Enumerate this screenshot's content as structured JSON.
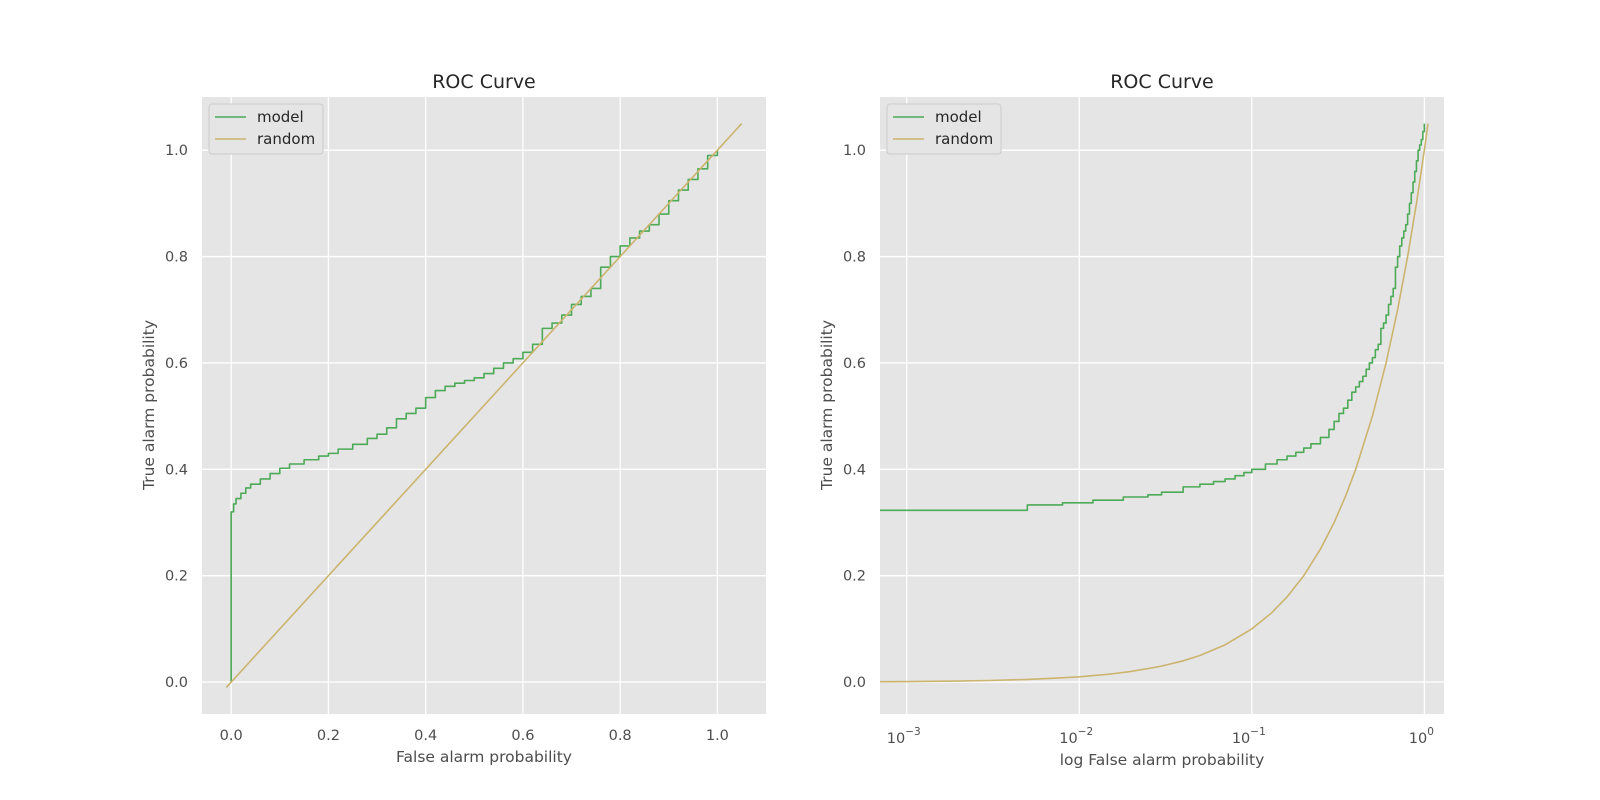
{
  "chart_data": [
    {
      "type": "line",
      "title": "ROC Curve",
      "xlabel": "False alarm probability",
      "ylabel": "True alarm probability",
      "xscale": "linear",
      "xlim": [
        -0.06,
        1.1
      ],
      "ylim": [
        -0.06,
        1.1
      ],
      "xticks": [
        0.0,
        0.2,
        0.4,
        0.6,
        0.8,
        1.0
      ],
      "xtick_labels": [
        "0.0",
        "0.2",
        "0.4",
        "0.6",
        "0.8",
        "1.0"
      ],
      "yticks": [
        0.0,
        0.2,
        0.4,
        0.6,
        0.8,
        1.0
      ],
      "ytick_labels": [
        "0.0",
        "0.2",
        "0.4",
        "0.6",
        "0.8",
        "1.0"
      ],
      "grid": true,
      "legend": "upper-left",
      "series": [
        {
          "name": "model",
          "color": "#4daa57",
          "step": true,
          "x": [
            0.0,
            0.0,
            0.005,
            0.01,
            0.02,
            0.03,
            0.04,
            0.06,
            0.08,
            0.1,
            0.12,
            0.15,
            0.18,
            0.2,
            0.22,
            0.25,
            0.28,
            0.3,
            0.32,
            0.34,
            0.36,
            0.38,
            0.4,
            0.42,
            0.44,
            0.46,
            0.48,
            0.5,
            0.52,
            0.54,
            0.56,
            0.58,
            0.6,
            0.62,
            0.64,
            0.66,
            0.68,
            0.7,
            0.72,
            0.74,
            0.76,
            0.78,
            0.8,
            0.82,
            0.84,
            0.86,
            0.88,
            0.9,
            0.92,
            0.94,
            0.96,
            0.98,
            1.0
          ],
          "y": [
            0.0,
            0.32,
            0.335,
            0.345,
            0.355,
            0.365,
            0.372,
            0.382,
            0.392,
            0.402,
            0.41,
            0.418,
            0.425,
            0.43,
            0.438,
            0.447,
            0.458,
            0.466,
            0.478,
            0.495,
            0.505,
            0.515,
            0.535,
            0.548,
            0.556,
            0.562,
            0.567,
            0.572,
            0.58,
            0.59,
            0.6,
            0.608,
            0.62,
            0.635,
            0.665,
            0.675,
            0.69,
            0.71,
            0.725,
            0.74,
            0.78,
            0.8,
            0.82,
            0.835,
            0.848,
            0.86,
            0.88,
            0.905,
            0.925,
            0.945,
            0.965,
            0.99,
            1.0
          ]
        },
        {
          "name": "random",
          "color": "#ccb46e",
          "step": false,
          "x": [
            -0.01,
            1.05
          ],
          "y": [
            -0.01,
            1.05
          ]
        }
      ]
    },
    {
      "type": "line",
      "title": "ROC Curve",
      "xlabel": "log False alarm probability",
      "ylabel": "True alarm probability",
      "xscale": "log",
      "xlim": [
        0.0007,
        1.3
      ],
      "ylim": [
        -0.06,
        1.1
      ],
      "xticks": [
        0.001,
        0.01,
        0.1,
        1
      ],
      "xtick_labels": [
        {
          "base": "10",
          "exp": "−3"
        },
        {
          "base": "10",
          "exp": "−2"
        },
        {
          "base": "10",
          "exp": "−1"
        },
        {
          "base": "10",
          "exp": "0"
        }
      ],
      "yticks": [
        0.0,
        0.2,
        0.4,
        0.6,
        0.8,
        1.0
      ],
      "ytick_labels": [
        "0.0",
        "0.2",
        "0.4",
        "0.6",
        "0.8",
        "1.0"
      ],
      "grid": true,
      "legend": "upper-left",
      "series": [
        {
          "name": "model",
          "color": "#4daa57",
          "step": true,
          "x": [
            0.0007,
            0.005,
            0.008,
            0.012,
            0.018,
            0.025,
            0.03,
            0.04,
            0.05,
            0.06,
            0.07,
            0.08,
            0.09,
            0.1,
            0.12,
            0.14,
            0.16,
            0.18,
            0.2,
            0.22,
            0.25,
            0.28,
            0.3,
            0.32,
            0.34,
            0.36,
            0.38,
            0.4,
            0.42,
            0.44,
            0.46,
            0.48,
            0.5,
            0.52,
            0.54,
            0.56,
            0.58,
            0.6,
            0.62,
            0.64,
            0.66,
            0.68,
            0.7,
            0.72,
            0.74,
            0.76,
            0.78,
            0.8,
            0.82,
            0.84,
            0.86,
            0.88,
            0.9,
            0.92,
            0.94,
            0.96,
            0.98,
            1.0
          ],
          "y": [
            0.323,
            0.333,
            0.337,
            0.342,
            0.348,
            0.352,
            0.357,
            0.367,
            0.372,
            0.377,
            0.382,
            0.388,
            0.394,
            0.4,
            0.41,
            0.418,
            0.425,
            0.432,
            0.44,
            0.448,
            0.46,
            0.475,
            0.49,
            0.505,
            0.515,
            0.53,
            0.545,
            0.555,
            0.565,
            0.575,
            0.588,
            0.6,
            0.61,
            0.625,
            0.635,
            0.665,
            0.675,
            0.69,
            0.71,
            0.725,
            0.74,
            0.78,
            0.8,
            0.82,
            0.835,
            0.848,
            0.86,
            0.88,
            0.9,
            0.92,
            0.94,
            0.96,
            0.98,
            1.0,
            1.01,
            1.02,
            1.035,
            1.05
          ]
        },
        {
          "name": "random",
          "color": "#ccb46e",
          "step": false,
          "x": [
            0.0007,
            0.001,
            0.002,
            0.003,
            0.005,
            0.007,
            0.01,
            0.015,
            0.02,
            0.03,
            0.04,
            0.05,
            0.07,
            0.1,
            0.13,
            0.16,
            0.2,
            0.25,
            0.3,
            0.35,
            0.4,
            0.5,
            0.6,
            0.7,
            0.8,
            0.9,
            1.0,
            1.05
          ],
          "y": [
            0.0007,
            0.001,
            0.002,
            0.003,
            0.005,
            0.007,
            0.01,
            0.015,
            0.02,
            0.03,
            0.04,
            0.05,
            0.07,
            0.1,
            0.13,
            0.16,
            0.2,
            0.25,
            0.3,
            0.35,
            0.4,
            0.5,
            0.6,
            0.7,
            0.8,
            0.9,
            1.0,
            1.05
          ]
        }
      ]
    }
  ]
}
